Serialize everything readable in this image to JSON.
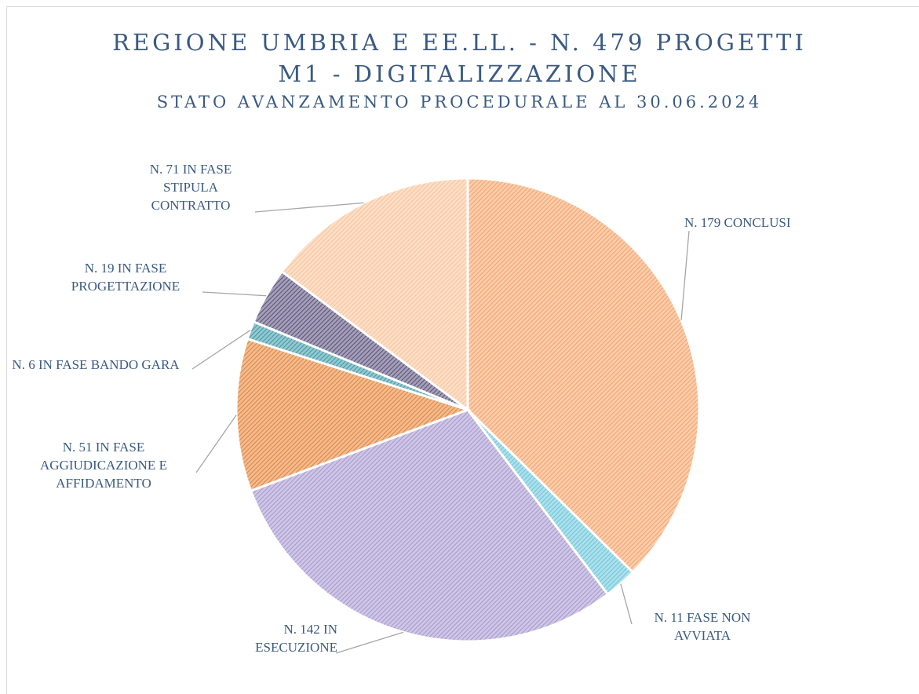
{
  "chart_data": {
    "type": "pie",
    "title_lines": [
      "REGIONE UMBRIA E EE.LL. - N. 479 PROGETTI",
      "M1 - DIGITALIZZAZIONE"
    ],
    "subtitle": "STATO AVANZAMENTO PROCEDURALE AL 30.06.2024",
    "categories": [
      "N. 179 CONCLUSI",
      "N. 11 FASE NON AVVIATA",
      "N. 142 IN ESECUZIONE",
      "N. 51 IN FASE AGGIUDICAZIONE E AFFIDAMENTO",
      "N. 6 IN FASE BANDO GARA",
      "N. 19 IN FASE PROGETTAZIONE",
      "N. 71 IN FASE STIPULA CONTRATTO"
    ],
    "values": [
      179,
      11,
      142,
      51,
      6,
      19,
      71
    ],
    "colors": [
      "#f5a46a",
      "#6cc6da",
      "#a898d0",
      "#e5843a",
      "#3f9aa8",
      "#5b527c",
      "#f9c49a"
    ]
  }
}
